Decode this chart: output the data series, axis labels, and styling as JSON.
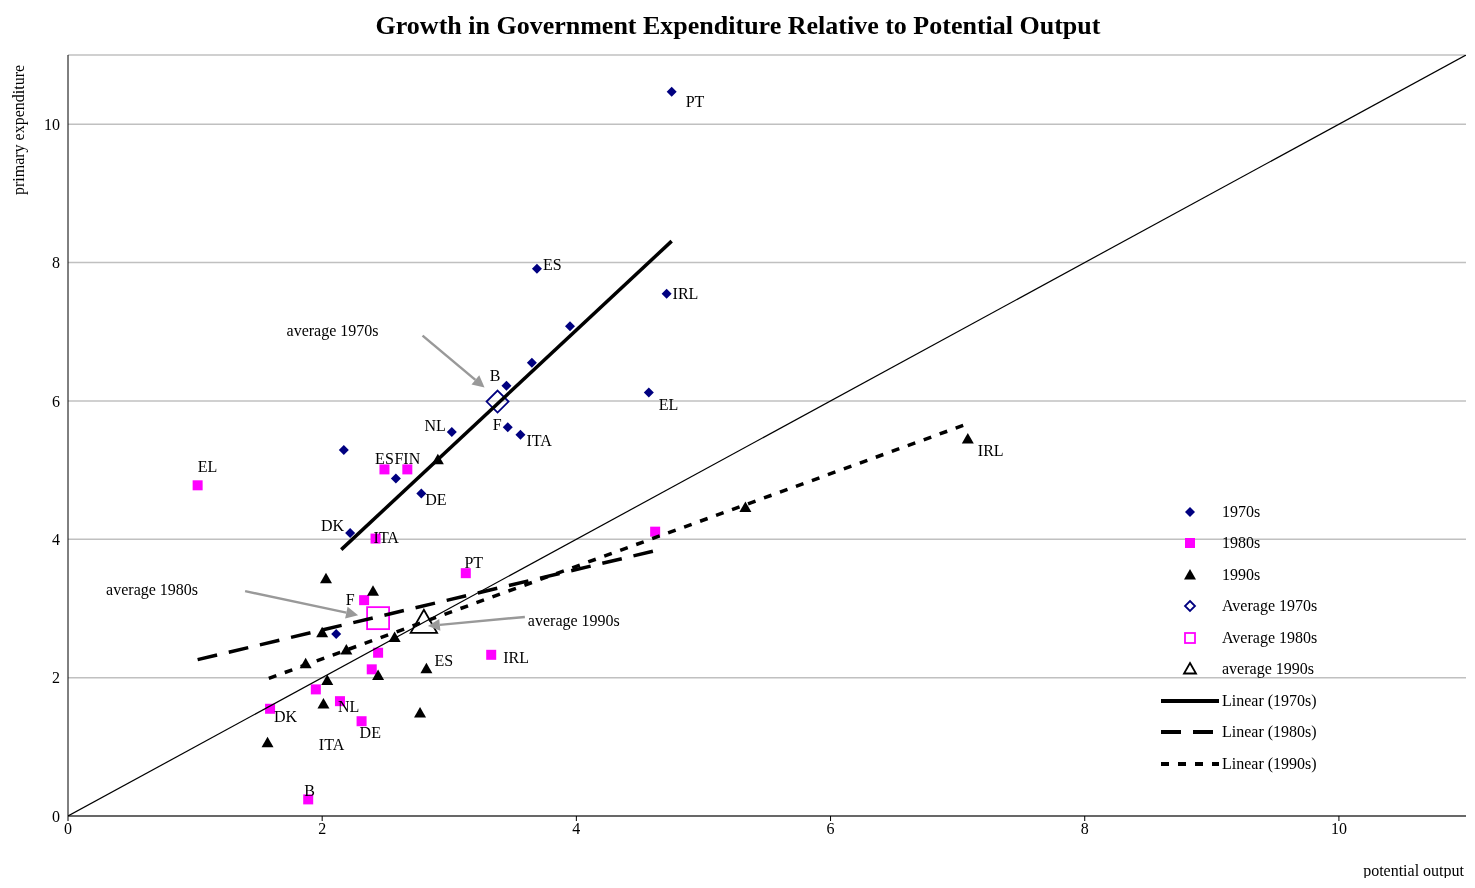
{
  "chart_data": {
    "type": "scatter",
    "title": "Growth in Government Expenditure Relative to Potential Output",
    "xlabel": "potential output",
    "ylabel": "primary expenditure",
    "xlim": [
      0,
      11
    ],
    "ylim": [
      0,
      11
    ],
    "xticks": [
      0,
      2,
      4,
      6,
      8,
      10
    ],
    "yticks": [
      0,
      2,
      4,
      6,
      8,
      10
    ],
    "grid": "y",
    "legend": "right",
    "series": [
      {
        "name": "1970s",
        "marker": "diamond",
        "color": "#000080",
        "x": [
          4.75,
          3.69,
          4.71,
          3.95,
          3.65,
          3.45,
          4.57,
          3.02,
          3.46,
          3.56,
          2.17,
          2.58,
          2.78,
          2.22,
          2.11
        ],
        "values": [
          10.47,
          7.91,
          7.55,
          7.08,
          6.55,
          6.22,
          6.12,
          5.55,
          5.62,
          5.51,
          5.29,
          4.88,
          4.66,
          4.09,
          2.63
        ]
      },
      {
        "name": "1980s",
        "marker": "square",
        "color": "#ff00ff",
        "x": [
          1.02,
          2.49,
          2.67,
          2.42,
          3.13,
          4.62,
          2.33,
          2.44,
          2.39,
          3.33,
          1.95,
          1.59,
          2.14,
          2.31,
          1.89
        ],
        "values": [
          4.78,
          5.01,
          5.01,
          4.01,
          3.51,
          4.11,
          3.12,
          2.36,
          2.12,
          2.33,
          1.83,
          1.55,
          1.66,
          1.37,
          0.24
        ]
      },
      {
        "name": "1990s",
        "marker": "triangle",
        "color": "#000000",
        "x": [
          2.91,
          7.08,
          5.33,
          2.03,
          2.4,
          2.0,
          2.19,
          1.87,
          2.57,
          2.04,
          2.44,
          2.82,
          2.01,
          2.77,
          1.57
        ],
        "values": [
          5.15,
          5.45,
          4.46,
          3.43,
          3.25,
          2.65,
          2.4,
          2.2,
          2.58,
          1.96,
          2.03,
          2.13,
          1.62,
          1.49,
          1.06
        ]
      },
      {
        "name": "Average 1970s",
        "marker": "diamond",
        "color": "#000080",
        "x": [
          3.38
        ],
        "values": [
          5.99
        ]
      },
      {
        "name": "Average 1980s",
        "marker": "square",
        "color": "#ff00ff",
        "x": [
          2.44
        ],
        "values": [
          2.86
        ]
      },
      {
        "name": "average 1990s",
        "marker": "triangle",
        "color": "#000000",
        "x": [
          2.8
        ],
        "values": [
          2.79
        ]
      },
      {
        "name": "Linear (1970s)",
        "type": "line",
        "line_style": "solid",
        "color": "#000000",
        "x": [
          2.15,
          4.75
        ],
        "values": [
          3.85,
          8.31
        ]
      },
      {
        "name": "Linear (1980s)",
        "type": "line",
        "line_style": "dashed",
        "color": "#000000",
        "x": [
          1.02,
          4.61
        ],
        "values": [
          2.26,
          3.83
        ]
      },
      {
        "name": "Linear (1990s)",
        "type": "line",
        "line_style": "dotted",
        "color": "#000000",
        "x": [
          1.58,
          7.08
        ],
        "values": [
          1.99,
          5.67
        ]
      },
      {
        "type": "line",
        "line_style": "solid",
        "color": "#000000",
        "x": [
          0,
          11
        ],
        "values": [
          0,
          11
        ]
      }
    ],
    "annotations": [
      {
        "text": "PT",
        "x": 4.75,
        "y": 10.47
      },
      {
        "text": "ES",
        "x": 3.69,
        "y": 7.91
      },
      {
        "text": "IRL",
        "x": 4.71,
        "y": 7.55
      },
      {
        "text": "B",
        "x": 3.45,
        "y": 6.22
      },
      {
        "text": "EL",
        "x": 4.57,
        "y": 6.12
      },
      {
        "text": "NL",
        "x": 3.02,
        "y": 5.55
      },
      {
        "text": "F",
        "x": 3.46,
        "y": 5.62
      },
      {
        "text": "ITA",
        "x": 3.56,
        "y": 5.51
      },
      {
        "text": "DE",
        "x": 2.78,
        "y": 4.66
      },
      {
        "text": "DK",
        "x": 2.22,
        "y": 4.09
      },
      {
        "text": "EL",
        "x": 1.02,
        "y": 4.78
      },
      {
        "text": "ES",
        "x": 2.49,
        "y": 5.01
      },
      {
        "text": "FIN",
        "x": 2.67,
        "y": 5.01
      },
      {
        "text": "ITA",
        "x": 2.42,
        "y": 4.01
      },
      {
        "text": "PT",
        "x": 3.13,
        "y": 3.51
      },
      {
        "text": "F",
        "x": 2.33,
        "y": 3.12
      },
      {
        "text": "IRL",
        "x": 3.33,
        "y": 2.33
      },
      {
        "text": "DK",
        "x": 1.59,
        "y": 1.55
      },
      {
        "text": "NL",
        "x": 2.14,
        "y": 1.66
      },
      {
        "text": "DE",
        "x": 2.31,
        "y": 1.37
      },
      {
        "text": "B",
        "x": 1.89,
        "y": 0.24
      },
      {
        "text": "IRL",
        "x": 7.08,
        "y": 5.45
      },
      {
        "text": "ES",
        "x": 2.82,
        "y": 2.13
      },
      "ITA",
      "average 1970s",
      "average 1980s",
      "average 1990s"
    ]
  }
}
